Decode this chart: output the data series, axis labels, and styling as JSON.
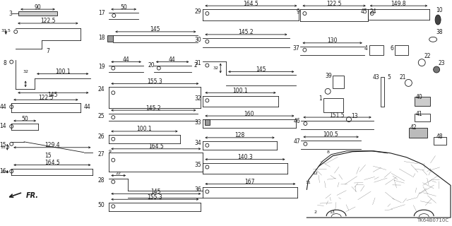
{
  "title": "",
  "bg_color": "#ffffff",
  "part_code": "TK64B0710C",
  "fr_label": "FR.",
  "line_color": "#1a1a1a",
  "text_color": "#1a1a1a",
  "lw": 0.6,
  "fs": 5.5
}
